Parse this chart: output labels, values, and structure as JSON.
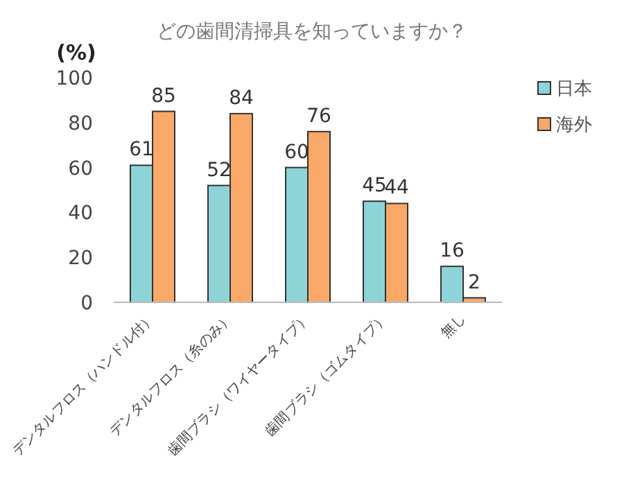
{
  "chart_data": {
    "type": "bar",
    "title": "どの歯間清掃具を知っていますか？",
    "ylabel": "(%)",
    "categories": [
      "デンタルフロス（ハンドル付）",
      "デンタルフロス（糸のみ）",
      "歯間ブラシ（ワイヤータイプ）",
      "歯間ブラシ（ゴムタイプ）",
      "無し"
    ],
    "series": [
      {
        "name": "日本",
        "color": "#8dd4d8",
        "values": [
          61,
          52,
          60,
          45,
          16
        ]
      },
      {
        "name": "海外",
        "color": "#f9a868",
        "values": [
          85,
          84,
          76,
          44,
          2
        ]
      }
    ],
    "ylim": [
      0,
      100
    ],
    "yticks": [
      0,
      20,
      40,
      60,
      80,
      100
    ],
    "data_labels": true,
    "legend": "top right",
    "grid": false
  }
}
